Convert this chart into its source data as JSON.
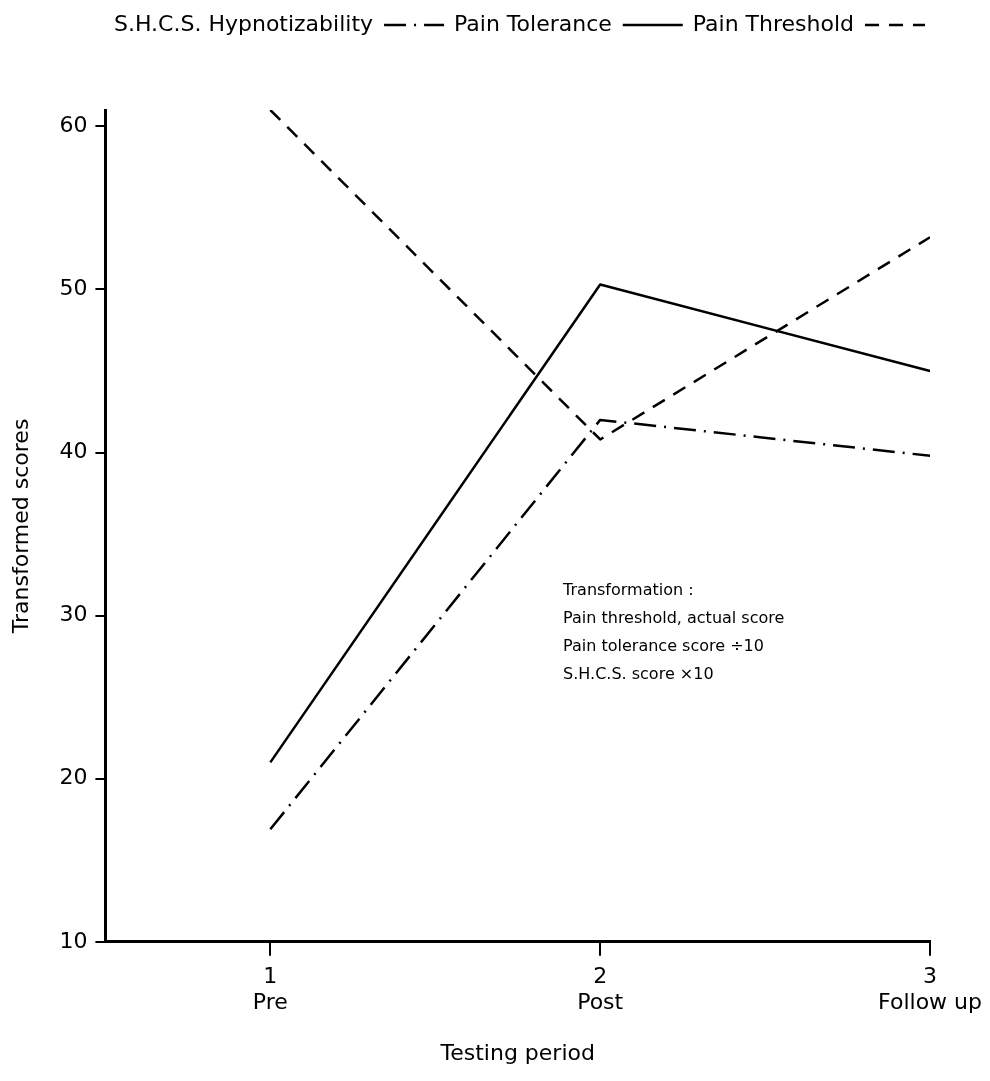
{
  "chart_data": {
    "type": "line",
    "xlabel": "Testing period",
    "ylabel": "Transformed scores",
    "x": [
      1,
      2,
      3
    ],
    "xlim": [
      0.5,
      3
    ],
    "xticks": [
      {
        "value": 1,
        "label": "1\nPre"
      },
      {
        "value": 2,
        "label": "2\nPost"
      },
      {
        "value": 3,
        "label": "3\nFollow up"
      }
    ],
    "ylim": [
      10,
      61
    ],
    "yticks": [
      10,
      20,
      30,
      40,
      50,
      60
    ],
    "grid": false,
    "legend": "top right",
    "marker": "none",
    "series": [
      {
        "name": "Pain Threshold",
        "color": "#000000",
        "line_style": "dashed",
        "values": [
          61.0,
          40.8,
          53.2
        ]
      },
      {
        "name": "Pain Tolerance",
        "color": "#000000",
        "line_style": "solid",
        "values": [
          21.0,
          50.3,
          45.0
        ]
      },
      {
        "name": "S.H.C.S. Hypnotizability",
        "color": "#000000",
        "line_style": "dashdot",
        "values": [
          16.9,
          42.0,
          39.8
        ]
      }
    ],
    "annotations": [
      "Transformation :",
      "Pain threshold, actual score",
      "Pain tolerance score ÷10",
      "S.H.C.S. score ×10"
    ]
  }
}
